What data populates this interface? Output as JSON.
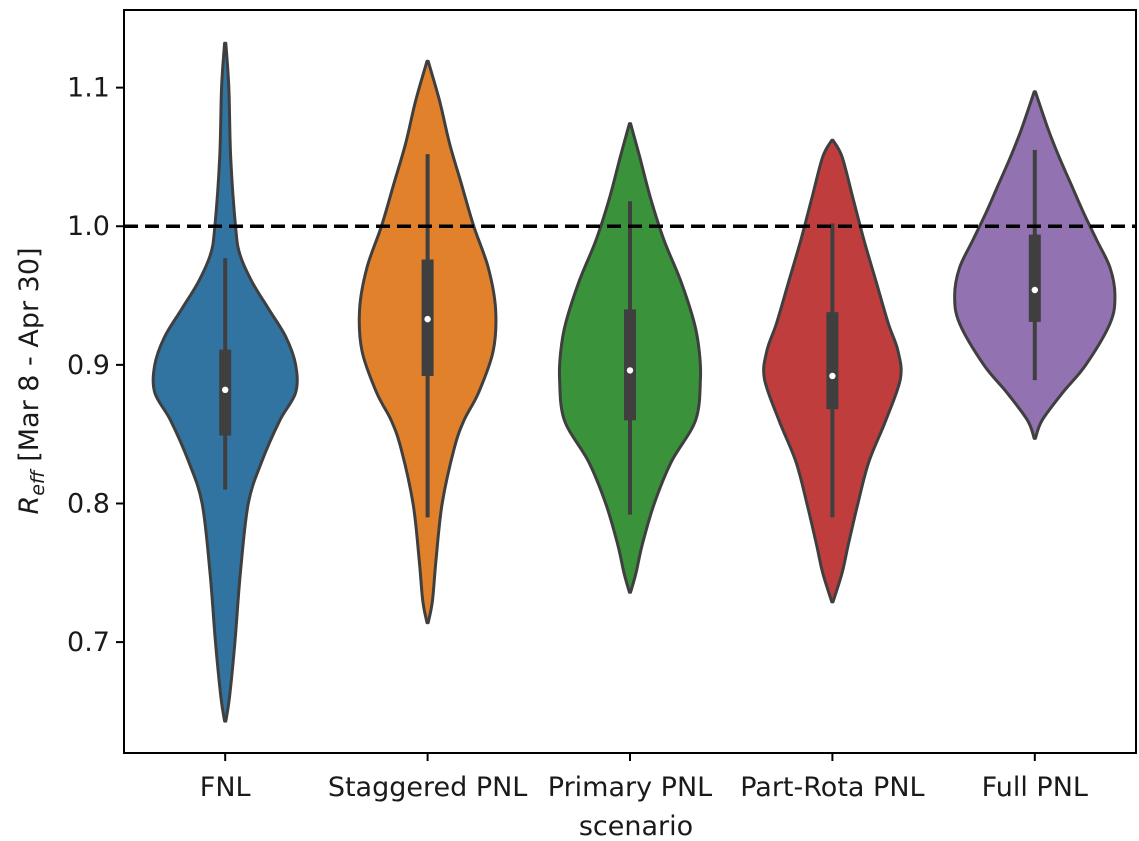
{
  "chart_data": {
    "type": "violin",
    "categories": [
      "FNL",
      "Staggered PNL",
      "Primary PNL",
      "Part-Rota PNL",
      "Full PNL"
    ],
    "xlabel": "scenario",
    "ylabel_main": "R",
    "ylabel_sub": "eff",
    "ylabel_rest": " [Mar 8 - Apr 30]",
    "ylim": [
      0.62,
      1.156
    ],
    "yticks": [
      0.7,
      0.8,
      0.9,
      1.0,
      1.1
    ],
    "ytick_labels": [
      "0.7",
      "0.8",
      "0.9",
      "1.0",
      "1.1"
    ],
    "reference_line": {
      "y": 1.0,
      "style": "dashed",
      "color": "#000000"
    },
    "grid": false,
    "colors": {
      "FNL": "#3274a1",
      "Staggered PNL": "#e1812c",
      "Primary PNL": "#3a923a",
      "Part-Rota PNL": "#c03d3e",
      "Full PNL": "#9372b2",
      "outline": "#3f3f3f",
      "box": "#3f3f3f",
      "median": "#ffffff"
    },
    "violins": [
      {
        "name": "FNL",
        "min": 0.643,
        "max": 1.132,
        "whisker_low": 0.81,
        "whisker_high": 0.977,
        "q1": 0.849,
        "q3": 0.911,
        "median": 0.882,
        "density": [
          [
            0.643,
            0.005
          ],
          [
            0.66,
            0.035
          ],
          [
            0.7,
            0.08
          ],
          [
            0.75,
            0.125
          ],
          [
            0.8,
            0.19
          ],
          [
            0.83,
            0.3
          ],
          [
            0.86,
            0.45
          ],
          [
            0.88,
            0.58
          ],
          [
            0.9,
            0.58
          ],
          [
            0.92,
            0.5
          ],
          [
            0.94,
            0.36
          ],
          [
            0.96,
            0.22
          ],
          [
            0.98,
            0.12
          ],
          [
            1.0,
            0.085
          ],
          [
            1.05,
            0.045
          ],
          [
            1.1,
            0.03
          ],
          [
            1.132,
            0.005
          ]
        ]
      },
      {
        "name": "Staggered PNL",
        "min": 0.714,
        "max": 1.119,
        "whisker_low": 0.79,
        "whisker_high": 1.052,
        "q1": 0.892,
        "q3": 0.976,
        "median": 0.933,
        "density": [
          [
            0.714,
            0.005
          ],
          [
            0.73,
            0.04
          ],
          [
            0.76,
            0.07
          ],
          [
            0.8,
            0.12
          ],
          [
            0.84,
            0.22
          ],
          [
            0.86,
            0.3
          ],
          [
            0.88,
            0.42
          ],
          [
            0.91,
            0.54
          ],
          [
            0.94,
            0.56
          ],
          [
            0.97,
            0.5
          ],
          [
            1.0,
            0.38
          ],
          [
            1.03,
            0.28
          ],
          [
            1.06,
            0.18
          ],
          [
            1.09,
            0.1
          ],
          [
            1.119,
            0.005
          ]
        ]
      },
      {
        "name": "Primary PNL",
        "min": 0.736,
        "max": 1.074,
        "whisker_low": 0.792,
        "whisker_high": 1.018,
        "q1": 0.86,
        "q3": 0.94,
        "median": 0.896,
        "density": [
          [
            0.736,
            0.005
          ],
          [
            0.75,
            0.05
          ],
          [
            0.77,
            0.1
          ],
          [
            0.8,
            0.2
          ],
          [
            0.83,
            0.34
          ],
          [
            0.86,
            0.54
          ],
          [
            0.89,
            0.58
          ],
          [
            0.91,
            0.57
          ],
          [
            0.93,
            0.53
          ],
          [
            0.96,
            0.42
          ],
          [
            0.99,
            0.28
          ],
          [
            1.02,
            0.17
          ],
          [
            1.05,
            0.08
          ],
          [
            1.074,
            0.005
          ]
        ]
      },
      {
        "name": "Part-Rota PNL",
        "min": 0.729,
        "max": 1.062,
        "whisker_low": 0.79,
        "whisker_high": 1.002,
        "q1": 0.868,
        "q3": 0.938,
        "median": 0.892,
        "density": [
          [
            0.729,
            0.005
          ],
          [
            0.75,
            0.08
          ],
          [
            0.77,
            0.13
          ],
          [
            0.8,
            0.21
          ],
          [
            0.83,
            0.3
          ],
          [
            0.86,
            0.44
          ],
          [
            0.89,
            0.56
          ],
          [
            0.91,
            0.54
          ],
          [
            0.93,
            0.46
          ],
          [
            0.96,
            0.36
          ],
          [
            0.99,
            0.26
          ],
          [
            1.02,
            0.17
          ],
          [
            1.05,
            0.08
          ],
          [
            1.062,
            0.005
          ]
        ]
      },
      {
        "name": "Full PNL",
        "min": 0.847,
        "max": 1.097,
        "whisker_low": 0.889,
        "whisker_high": 1.055,
        "q1": 0.931,
        "q3": 0.994,
        "median": 0.954,
        "density": [
          [
            0.847,
            0.005
          ],
          [
            0.86,
            0.06
          ],
          [
            0.88,
            0.23
          ],
          [
            0.9,
            0.42
          ],
          [
            0.93,
            0.62
          ],
          [
            0.95,
            0.66
          ],
          [
            0.97,
            0.62
          ],
          [
            0.99,
            0.51
          ],
          [
            1.01,
            0.4
          ],
          [
            1.03,
            0.3
          ],
          [
            1.05,
            0.2
          ],
          [
            1.07,
            0.11
          ],
          [
            1.097,
            0.005
          ]
        ]
      }
    ]
  }
}
